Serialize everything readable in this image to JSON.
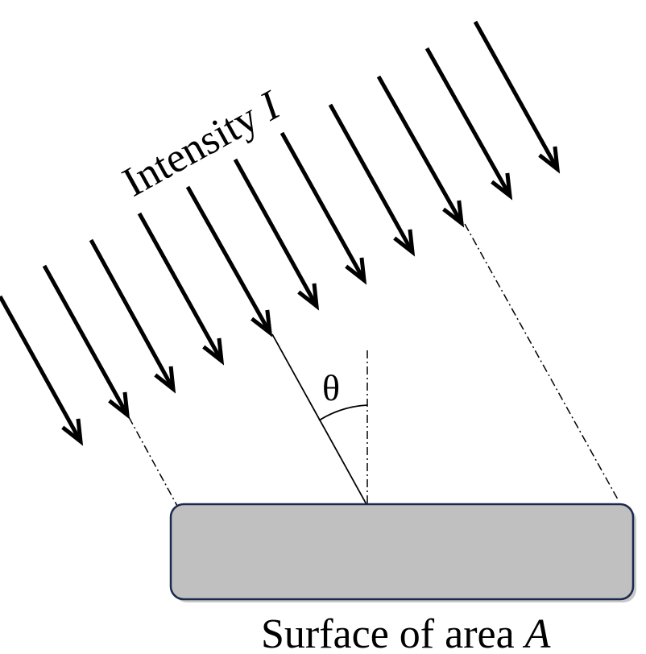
{
  "labels": {
    "intensity_prefix": "Intensity ",
    "intensity_symbol": "I",
    "angle_symbol": "θ",
    "surface_prefix": "Surface of area ",
    "surface_symbol": "A"
  },
  "colors": {
    "surface_fill": "#c0c0c0",
    "surface_border": "#1a2a4a",
    "line": "#000000",
    "background": "#ffffff"
  },
  "icons": {
    "ray_arrow": "arrow-down-right-icon"
  },
  "diagram": {
    "ray_count": 11,
    "incidence_angle_label": "θ"
  }
}
